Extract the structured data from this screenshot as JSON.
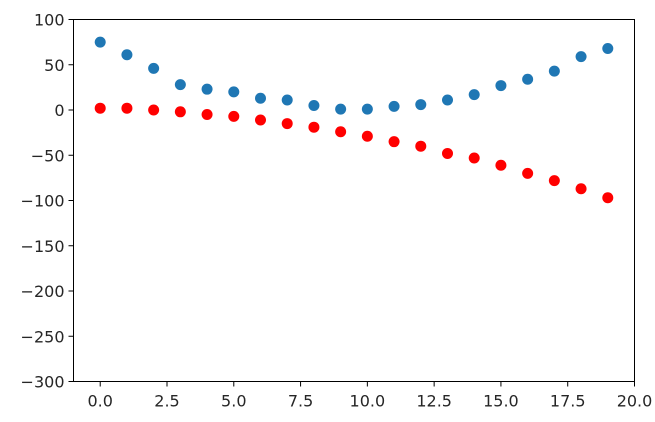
{
  "chart_data": {
    "type": "scatter",
    "title": "",
    "xlabel": "",
    "ylabel": "",
    "xlim": [
      -1.0,
      20.0
    ],
    "ylim": [
      -300,
      100
    ],
    "grid": false,
    "x_ticks": [
      0.0,
      2.5,
      5.0,
      7.5,
      10.0,
      12.5,
      15.0,
      17.5,
      20.0
    ],
    "x_tick_labels": [
      "0.0",
      "2.5",
      "5.0",
      "7.5",
      "10.0",
      "12.5",
      "15.0",
      "17.5",
      "20.0"
    ],
    "y_ticks": [
      100,
      50,
      0,
      -50,
      -100,
      -150,
      -200,
      -250,
      -300
    ],
    "y_tick_labels": [
      "100",
      "50",
      "0",
      "−50",
      "−100",
      "−150",
      "−200",
      "−250",
      "−300"
    ],
    "series": [
      {
        "color": "#1f77b4",
        "x": [
          0,
          1,
          2,
          3,
          4,
          5,
          6,
          7,
          8,
          9,
          10,
          11,
          12,
          13,
          14,
          15,
          16,
          17,
          18,
          19
        ],
        "y": [
          75,
          61,
          46,
          28,
          23,
          20,
          13,
          11,
          5,
          1,
          1,
          4,
          6,
          11,
          17,
          27,
          34,
          43,
          59,
          68
        ]
      },
      {
        "color": "#ff0000",
        "x": [
          0,
          1,
          2,
          3,
          4,
          5,
          6,
          7,
          8,
          9,
          10,
          11,
          12,
          13,
          14,
          15,
          16,
          17,
          18,
          19
        ],
        "y": [
          2,
          2,
          0,
          -2,
          -5,
          -7,
          -11,
          -15,
          -19,
          -24,
          -29,
          -35,
          -40,
          -48,
          -53,
          -61,
          -70,
          -78,
          -87,
          -97
        ]
      }
    ]
  }
}
